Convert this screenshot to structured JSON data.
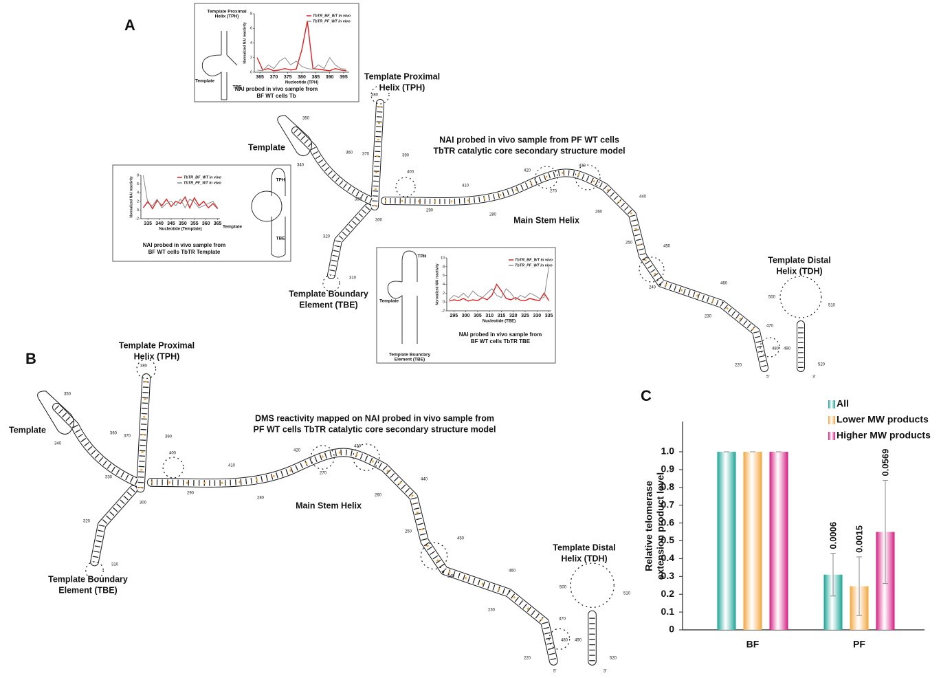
{
  "panel_a": {
    "label": "A",
    "title": [
      "NAI probed in vivo sample from PF WT cells",
      "TbTR catalytic core secondary structure model"
    ],
    "regions": [
      [
        "Template Proximal",
        "Helix (TPH)"
      ],
      [
        "Template"
      ],
      [
        "Main Stem Helix"
      ],
      [
        "Template Boundary",
        "Element (TBE)"
      ],
      [
        "Template Distal",
        "Helix (TDH)"
      ]
    ],
    "positions": [
      350,
      360,
      370,
      380,
      390,
      400,
      410,
      420,
      430,
      440,
      450,
      460,
      470,
      480,
      490,
      500,
      510,
      520,
      340,
      330,
      320,
      310,
      300,
      290,
      280,
      270,
      260,
      250,
      240,
      230,
      220
    ],
    "ends": [
      "5'",
      "3'"
    ]
  },
  "panel_b": {
    "label": "B",
    "title": [
      "DMS reactivity mapped on NAI probed in vivo sample from",
      "PF WT cells TbTR catalytic core secondary structure model"
    ],
    "regions": [
      [
        "Template Proximal",
        "Helix (TPH)"
      ],
      [
        "Template"
      ],
      [
        "Main Stem Helix"
      ],
      [
        "Template Boundary",
        "Element (TBE)"
      ],
      [
        "Template Distal",
        "Helix (TDH)"
      ]
    ],
    "positions": [
      350,
      360,
      370,
      380,
      390,
      400,
      410,
      420,
      430,
      440,
      450,
      460,
      470,
      480,
      490,
      500,
      510,
      520,
      340,
      330,
      320,
      310,
      300,
      290,
      280,
      270,
      260,
      250,
      240,
      230,
      220
    ],
    "ends": [
      "5'",
      "3'"
    ]
  },
  "panel_c": {
    "label": "C"
  },
  "chart_data": [
    {
      "type": "bar",
      "categories": [
        "BF",
        "PF"
      ],
      "ylabel": [
        "Relative telomerase",
        "extension product level"
      ],
      "ylim": [
        0,
        1.17
      ],
      "yticks": [
        0,
        0.1,
        0.2,
        0.3,
        0.4,
        0.5,
        0.6,
        0.7,
        0.8,
        0.9,
        {
          "value": 1,
          "label": "1.0"
        }
      ],
      "legend": "upper right",
      "series": [
        {
          "name": "All",
          "color": "#16a394",
          "values": [
            1,
            0.31
          ],
          "errors": [
            0,
            0.12
          ],
          "error_labels": [
            null,
            "0.0006"
          ]
        },
        {
          "name": "Lower MW products",
          "color": "#f2a43a",
          "values": [
            1,
            0.245
          ],
          "errors": [
            0,
            0.165
          ],
          "error_labels": [
            null,
            "0.0015"
          ]
        },
        {
          "name": "Higher  MW products",
          "color": "#d4187f",
          "values": [
            1,
            0.55
          ],
          "errors": [
            0,
            0.29
          ],
          "error_labels": [
            null,
            "0.0569"
          ]
        }
      ]
    },
    {
      "type": "line",
      "xlabel": "Nucleotide (TPH)",
      "ylabel": "Normalized NAI reactivity",
      "annotations": [
        "Template Proximal",
        "Helix (TPH)",
        "Template",
        "TBE"
      ],
      "caption": [
        "NAI probed in vivo sample from",
        "BF WT cells Tb"
      ],
      "x": [
        364,
        366,
        368,
        370,
        372,
        374,
        376,
        378,
        380,
        382,
        384,
        386,
        388,
        390,
        392,
        394,
        396
      ],
      "xlim": [
        363,
        397
      ],
      "xticks": [
        365,
        370,
        375,
        380,
        385,
        390,
        395
      ],
      "ylim": [
        0,
        8
      ],
      "yticks": [
        0,
        2,
        4,
        6,
        8
      ],
      "series": [
        {
          "name": "TbTR_BF_WT in vivo",
          "color": "#e02020",
          "values": [
            2,
            0.3,
            0.5,
            0.2,
            0.3,
            0.5,
            0.3,
            0.4,
            3,
            7,
            0.5,
            0.4,
            0.3,
            0.2,
            0.5,
            0.3,
            0.2
          ]
        },
        {
          "name": "TbTR_PF_WT in vivo",
          "color": "#888888",
          "values": [
            0.3,
            0.2,
            1,
            0.5,
            1.5,
            2,
            1,
            1.5,
            0.8,
            0.5,
            0.4,
            1,
            0.5,
            2,
            1,
            0.5,
            0.4
          ]
        }
      ]
    },
    {
      "type": "line",
      "xlabel": "Nucleotide (Template)",
      "ylabel": "Normalized NAI reactivity",
      "annotations": [
        "TPH",
        "Template",
        "TBE"
      ],
      "caption": [
        "NAI probed in vivo sample from",
        "BF WT cells TbTR Template"
      ],
      "x": [
        333,
        335,
        337,
        339,
        341,
        343,
        345,
        347,
        349,
        351,
        353,
        355,
        357,
        359,
        361,
        363,
        365
      ],
      "xlim": [
        332,
        366
      ],
      "xticks": [
        335,
        340,
        345,
        350,
        355,
        360,
        365
      ],
      "ylim": [
        -2,
        8
      ],
      "yticks": [
        -2,
        0,
        2,
        4,
        6,
        8
      ],
      "series": [
        {
          "name": "TbTR_BF_WT in vivo",
          "color": "#e02020",
          "values": [
            0.5,
            2,
            0.3,
            2.2,
            1,
            2.5,
            0.8,
            2,
            1.5,
            3,
            0.5,
            2.8,
            1,
            2,
            0.5,
            1.5,
            0.3
          ]
        },
        {
          "name": "TbTR_PF_WT in vivo",
          "color": "#888888",
          "values": [
            8,
            1.5,
            1,
            2.5,
            0.5,
            1.5,
            2,
            1,
            2.5,
            0.5,
            2.5,
            1.8,
            0.5,
            1,
            1.5,
            2,
            0.5
          ]
        }
      ]
    },
    {
      "type": "line",
      "xlabel": "Nucleotide (TBE)",
      "ylabel": "Normalized NAI reactivity",
      "annotations": [
        "TPH",
        "Template",
        "Template Boundary",
        "Element (TBE)"
      ],
      "caption": [
        "NAI probed in vivo sample from",
        "BF WT cells TbTR TBE"
      ],
      "x": [
        293,
        295,
        297,
        299,
        301,
        303,
        305,
        307,
        309,
        311,
        313,
        315,
        317,
        319,
        321,
        323,
        325,
        327,
        329,
        331,
        333,
        335
      ],
      "xlim": [
        292,
        336
      ],
      "xticks": [
        295,
        300,
        305,
        310,
        315,
        320,
        325,
        330,
        335
      ],
      "ylim": [
        -2,
        10
      ],
      "yticks": [
        -2,
        0,
        2,
        4,
        6,
        8,
        10
      ],
      "series": [
        {
          "name": "TbTR_BF_WT in vivo",
          "color": "#e02020",
          "values": [
            0.2,
            0.5,
            0.3,
            0.8,
            0.2,
            0.5,
            0.3,
            1,
            0.5,
            1.5,
            4,
            2.5,
            0.8,
            0.5,
            1,
            0.4,
            0.3,
            0.8,
            0.5,
            0.3,
            2,
            0.3
          ]
        },
        {
          "name": "TbTR_PF_WT in vivo",
          "color": "#888888",
          "values": [
            0.5,
            1.5,
            1,
            2,
            1,
            2.5,
            1.5,
            1,
            2,
            3,
            1.5,
            1,
            3,
            2,
            0.5,
            1.5,
            1,
            2,
            1.5,
            0.8,
            1,
            8
          ]
        }
      ]
    }
  ]
}
